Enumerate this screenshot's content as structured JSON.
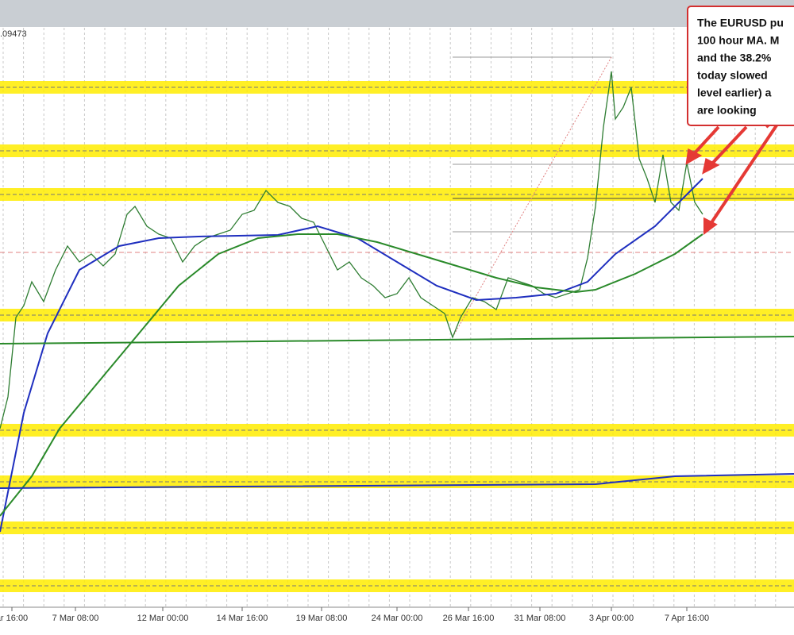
{
  "chart_data": {
    "type": "line",
    "price_label": ".09473",
    "xlim": [
      0,
      200
    ],
    "ylim": [
      1.06,
      1.0965
    ],
    "xticks": [
      {
        "value": 3,
        "label": "ar 16:00"
      },
      {
        "value": 19,
        "label": "7 Mar 08:00"
      },
      {
        "value": 41,
        "label": "12 Mar 00:00"
      },
      {
        "value": 61,
        "label": "14 Mar 16:00"
      },
      {
        "value": 81,
        "label": "19 Mar 08:00"
      },
      {
        "value": 100,
        "label": "24 Mar 00:00"
      },
      {
        "value": 118,
        "label": "26 Mar 16:00"
      },
      {
        "value": 136,
        "label": "31 Mar 08:00"
      },
      {
        "value": 154,
        "label": "3 Apr 00:00"
      },
      {
        "value": 173,
        "label": "7 Apr 16:00"
      }
    ],
    "bands": [
      1.09275,
      1.08875,
      1.086,
      1.0784,
      1.07115,
      1.0679,
      1.065,
      1.06135
    ],
    "series": [
      {
        "color": "#2e7d32",
        "x": [
          0,
          2,
          4,
          6,
          8,
          11,
          14,
          17,
          20,
          23,
          26,
          29,
          32,
          34,
          37,
          40,
          43,
          46,
          49,
          52,
          55,
          58,
          61,
          64,
          67,
          70,
          73,
          76,
          79,
          82,
          85,
          88,
          91,
          94,
          97,
          100,
          103,
          106,
          109,
          112,
          114,
          116,
          119,
          122,
          125,
          128,
          131,
          134,
          137,
          140,
          143,
          146,
          148,
          150,
          152,
          154,
          155,
          157,
          159,
          161,
          163,
          165,
          167,
          169,
          171,
          173,
          175,
          177
        ],
        "values": [
          1.07125,
          1.07325,
          1.07825,
          1.079,
          1.0805,
          1.07925,
          1.08125,
          1.08275,
          1.08175,
          1.08225,
          1.0815,
          1.08225,
          1.08475,
          1.08525,
          1.084,
          1.0835,
          1.08325,
          1.08175,
          1.08275,
          1.08325,
          1.0835,
          1.08375,
          1.08475,
          1.085,
          1.08625,
          1.0855,
          1.08525,
          1.0845,
          1.08425,
          1.08275,
          1.08125,
          1.08175,
          1.08075,
          1.08025,
          1.0795,
          1.07975,
          1.08075,
          1.0795,
          1.079,
          1.0785,
          1.077,
          1.07825,
          1.0795,
          1.07925,
          1.07875,
          1.08075,
          1.0805,
          1.08025,
          1.07975,
          1.0795,
          1.07975,
          1.08,
          1.082,
          1.08525,
          1.09025,
          1.09375,
          1.09075,
          1.0915,
          1.09275,
          1.08825,
          1.087,
          1.0855,
          1.0885,
          1.0855,
          1.085,
          1.088,
          1.0855,
          1.08475
        ]
      },
      {
        "color": "#1f2fbf",
        "x": [
          0,
          6,
          12,
          20,
          30,
          40,
          50,
          60,
          70,
          80,
          90,
          100,
          110,
          120,
          130,
          140,
          148,
          155,
          165,
          172,
          177
        ],
        "values": [
          1.06475,
          1.07225,
          1.07725,
          1.08125,
          1.08275,
          1.08325,
          1.08335,
          1.0834,
          1.08345,
          1.084,
          1.08325,
          1.08175,
          1.08025,
          1.07935,
          1.0795,
          1.07975,
          1.0805,
          1.08225,
          1.084,
          1.08575,
          1.087
        ]
      },
      {
        "color": "#2a8a2a",
        "x": [
          0,
          8,
          15,
          25,
          35,
          45,
          55,
          65,
          75,
          85,
          95,
          105,
          115,
          125,
          135,
          145,
          150,
          160,
          170,
          177
        ],
        "values": [
          1.06575,
          1.06825,
          1.07125,
          1.07425,
          1.07725,
          1.08025,
          1.08225,
          1.08325,
          1.0835,
          1.0835,
          1.083,
          1.08225,
          1.0815,
          1.08075,
          1.08015,
          1.07985,
          1.08,
          1.081,
          1.08225,
          1.0835
        ]
      },
      {
        "color": "#2a8a2a",
        "x": [
          0,
          200
        ],
        "values": [
          1.0766,
          1.07705
        ]
      },
      {
        "color": "#1f2fbf",
        "x": [
          0,
          150,
          170,
          200
        ],
        "values": [
          1.0675,
          1.06775,
          1.06825,
          1.0684
        ]
      }
    ],
    "annotation": [
      "The EURUSD pu",
      "100 hour MA. M",
      "and the 38.2%",
      "today slowed",
      "level earlier) a",
      "are looking"
    ]
  }
}
